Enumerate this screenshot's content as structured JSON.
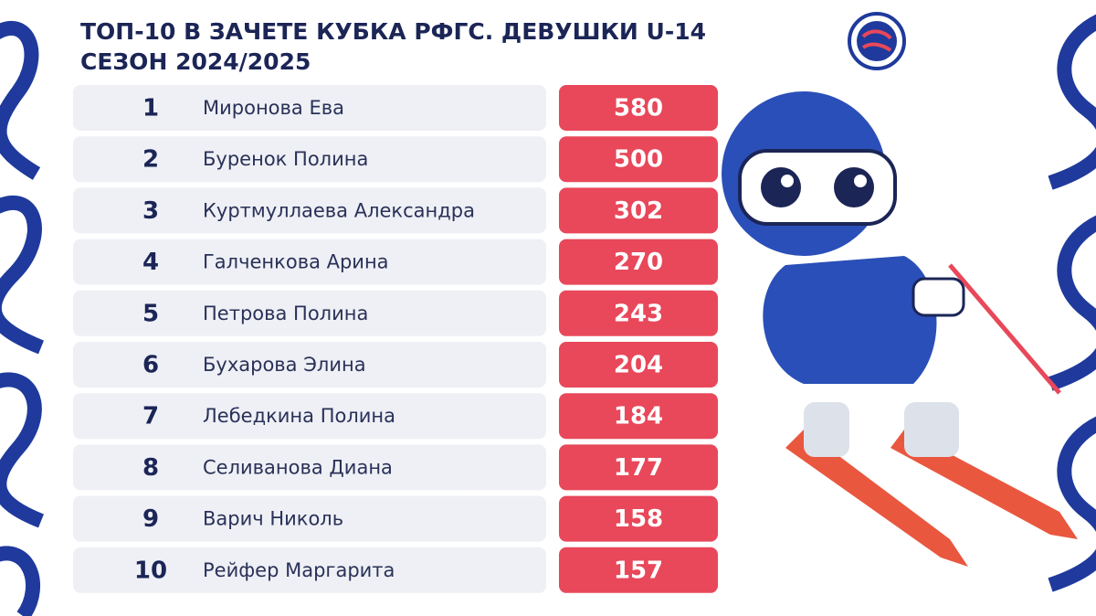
{
  "header": {
    "title": "ТОП-10 В ЗАЧЕТЕ КУБКА РФГС. ДЕВУШКИ U-14",
    "subtitle": "СЕЗОН 2024/2025"
  },
  "table": {
    "rows": [
      [
        1,
        "Миронова Ева",
        580
      ],
      [
        2,
        "Буренок Полина",
        500
      ],
      [
        3,
        "Куртмуллаева Александра",
        302
      ],
      [
        4,
        "Галченкова Арина",
        270
      ],
      [
        5,
        "Петрова Полина",
        243
      ],
      [
        6,
        "Бухарова Элина",
        204
      ],
      [
        7,
        "Лебедкина Полина",
        184
      ],
      [
        8,
        "Селиванова Диана",
        177
      ],
      [
        9,
        "Варич Николь",
        158
      ],
      [
        10,
        "Рейфер Маргарита",
        157
      ]
    ]
  }
}
